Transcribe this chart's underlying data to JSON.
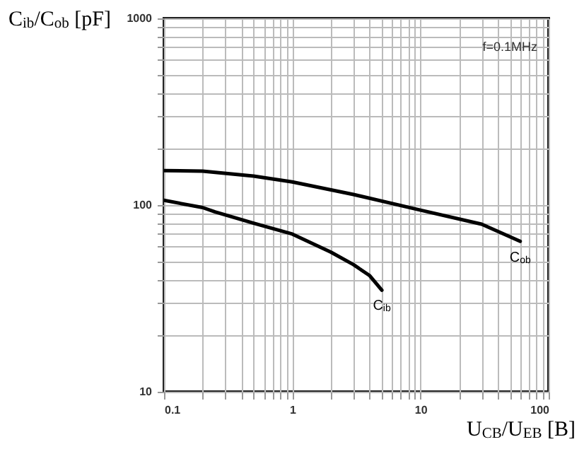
{
  "chart_data": {
    "type": "line",
    "xlabel": "U$_{CB}$/U$_{EB}$ [B]",
    "ylabel": "C$_{ib}$/C$_{ob}$ [pF]",
    "annotations": [
      "f=0.1MHz"
    ],
    "log": "xy",
    "grid": true,
    "marker": "none",
    "line_style": "solid",
    "xlim": [
      0.1,
      100
    ],
    "ylim": [
      10,
      1000
    ],
    "xticks": [
      0.1,
      {
        "value": 0.2,
        "label": null
      },
      {
        "value": 0.3,
        "label": null
      },
      {
        "value": 0.4,
        "label": null
      },
      {
        "value": 0.5,
        "label": null
      },
      {
        "value": 0.6,
        "label": null
      },
      {
        "value": 0.7,
        "label": null
      },
      {
        "value": 0.8,
        "label": null
      },
      {
        "value": 0.9,
        "label": null
      },
      1,
      {
        "value": 2,
        "label": null
      },
      {
        "value": 3,
        "label": null
      },
      {
        "value": 4,
        "label": null
      },
      {
        "value": 5,
        "label": null
      },
      {
        "value": 6,
        "label": null
      },
      {
        "value": 7,
        "label": null
      },
      {
        "value": 8,
        "label": null
      },
      {
        "value": 9,
        "label": null
      },
      10,
      {
        "value": 20,
        "label": null
      },
      {
        "value": 30,
        "label": null
      },
      {
        "value": 40,
        "label": null
      },
      {
        "value": 50,
        "label": null
      },
      {
        "value": 60,
        "label": null
      },
      {
        "value": 70,
        "label": null
      },
      {
        "value": 80,
        "label": null
      },
      {
        "value": 90,
        "label": null
      },
      100
    ],
    "yticks": [
      10,
      {
        "value": 20,
        "label": null
      },
      {
        "value": 30,
        "label": null
      },
      {
        "value": 40,
        "label": null
      },
      {
        "value": 50,
        "label": null
      },
      {
        "value": 60,
        "label": null
      },
      {
        "value": 70,
        "label": null
      },
      {
        "value": 80,
        "label": null
      },
      {
        "value": 90,
        "label": null
      },
      100,
      {
        "value": 200,
        "label": null
      },
      {
        "value": 300,
        "label": null
      },
      {
        "value": 400,
        "label": null
      },
      {
        "value": 500,
        "label": null
      },
      {
        "value": 600,
        "label": null
      },
      {
        "value": 700,
        "label": null
      },
      {
        "value": 800,
        "label": null
      },
      {
        "value": 900,
        "label": null
      },
      1000
    ],
    "series": [
      {
        "name": "C$_{ob}$",
        "color": "#000000",
        "x": [
          0.1,
          0.2,
          0.5,
          1,
          3,
          10,
          30,
          60
        ],
        "values": [
          153,
          152,
          143,
          133,
          114,
          94,
          79,
          64
        ]
      },
      {
        "name": "C$_{ib}$",
        "color": "#000000",
        "x": [
          0.1,
          0.2,
          0.25,
          0.5,
          1,
          2,
          3,
          4,
          5
        ],
        "values": [
          106,
          97,
          92,
          80,
          70,
          56,
          48,
          42,
          35
        ]
      }
    ]
  }
}
